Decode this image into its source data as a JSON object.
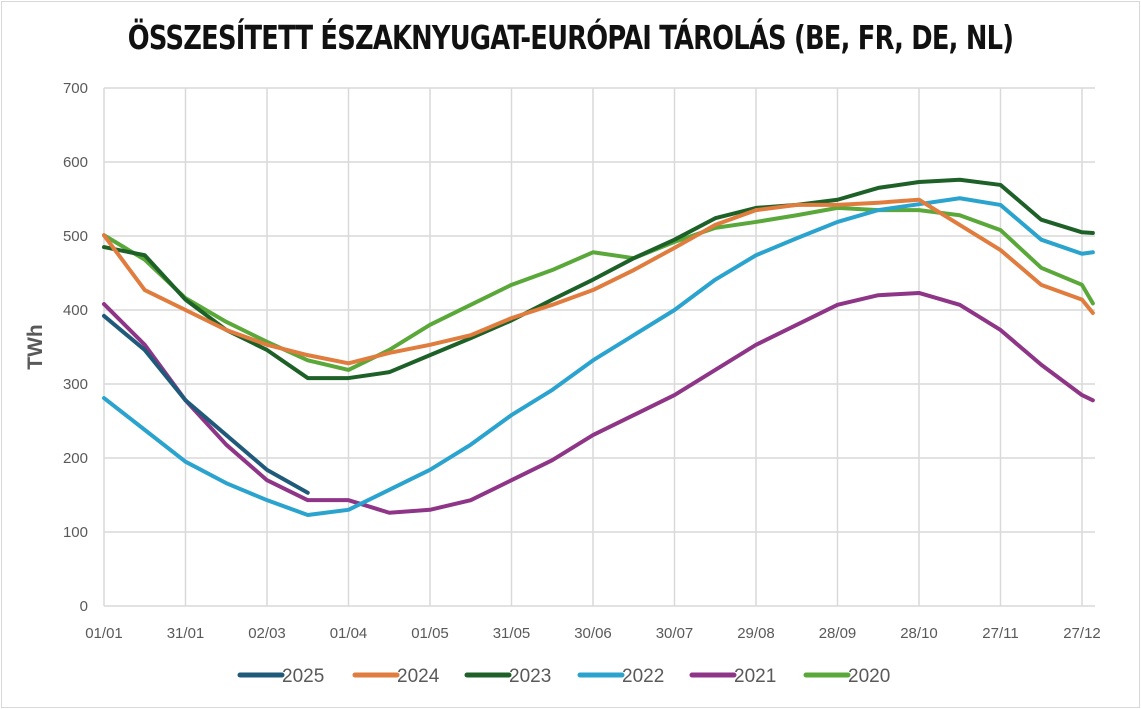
{
  "chart_data": {
    "type": "line",
    "title": "ÖSSZESÍTETT ÉSZAKNYUGAT-EURÓPAI TÁROLÁS (BE, FR, DE, NL)",
    "xlabel": "",
    "ylabel": "TWh",
    "ylim": [
      0,
      700
    ],
    "yticks": [
      0,
      100,
      200,
      300,
      400,
      500,
      600,
      700
    ],
    "xticks": [
      {
        "label": "01/01",
        "day": 0
      },
      {
        "label": "31/01",
        "day": 30
      },
      {
        "label": "02/03",
        "day": 60
      },
      {
        "label": "01/04",
        "day": 90
      },
      {
        "label": "01/05",
        "day": 120
      },
      {
        "label": "31/05",
        "day": 150
      },
      {
        "label": "30/06",
        "day": 180
      },
      {
        "label": "30/07",
        "day": 210
      },
      {
        "label": "29/08",
        "day": 240
      },
      {
        "label": "28/09",
        "day": 270
      },
      {
        "label": "28/10",
        "day": 300
      },
      {
        "label": "27/11",
        "day": 330
      },
      {
        "label": "27/12",
        "day": 360
      }
    ],
    "grid": true,
    "legend": "bottom",
    "x_days": [
      0,
      15,
      30,
      45,
      60,
      75,
      90,
      105,
      120,
      135,
      150,
      165,
      180,
      195,
      210,
      225,
      240,
      255,
      270,
      285,
      300,
      315,
      330,
      345,
      360,
      364
    ],
    "series": [
      {
        "name": "2025",
        "color": "#1f5a7a",
        "values": [
          392,
          346,
          278,
          231,
          184,
          153
        ]
      },
      {
        "name": "2024",
        "color": "#e07c3e",
        "values": [
          501,
          427,
          400,
          373,
          353,
          339,
          328,
          342,
          353,
          366,
          389,
          407,
          427,
          454,
          484,
          515,
          535,
          542,
          542,
          545,
          549,
          515,
          481,
          434,
          414,
          396
        ]
      },
      {
        "name": "2023",
        "color": "#1e6128",
        "values": [
          485,
          474,
          414,
          373,
          346,
          308,
          308,
          316,
          339,
          362,
          386,
          414,
          441,
          470,
          495,
          524,
          538,
          542,
          549,
          565,
          573,
          576,
          569,
          522,
          505,
          504
        ]
      },
      {
        "name": "2022",
        "color": "#2ba3cf",
        "values": [
          281,
          238,
          195,
          166,
          143,
          123,
          130,
          157,
          184,
          218,
          258,
          292,
          332,
          366,
          400,
          441,
          474,
          497,
          519,
          535,
          543,
          551,
          542,
          495,
          476,
          478
        ]
      },
      {
        "name": "2021",
        "color": "#8e3588",
        "values": [
          408,
          353,
          278,
          218,
          170,
          143,
          143,
          126,
          130,
          143,
          170,
          197,
          231,
          258,
          285,
          319,
          353,
          380,
          407,
          420,
          423,
          407,
          373,
          326,
          285,
          278
        ]
      },
      {
        "name": "2020",
        "color": "#5aa83a",
        "values": [
          501,
          468,
          416,
          384,
          357,
          332,
          319,
          346,
          380,
          407,
          434,
          454,
          478,
          470,
          492,
          511,
          519,
          528,
          538,
          535,
          535,
          528,
          508,
          457,
          434,
          409
        ]
      }
    ]
  }
}
